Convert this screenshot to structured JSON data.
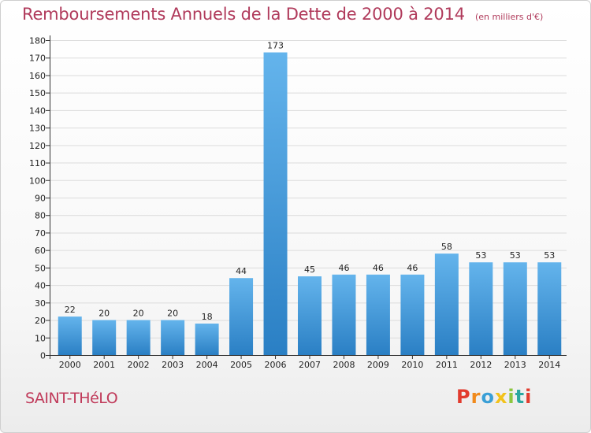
{
  "header": {
    "title": "Remboursements Annuels de la Dette de 2000 à 2014",
    "subtitle": "(en milliers d'€)"
  },
  "footer": {
    "commune": "SAINT-THéLO",
    "logo_text": "Proxiti",
    "logo_colors": [
      "#e23b2e",
      "#f08a1c",
      "#3a9fd6",
      "#f2c21b",
      "#8cc63f",
      "#2aa7a0",
      "#e23b2e"
    ]
  },
  "colors": {
    "bar_light": "#64b4ec",
    "bar_dark": "#2a7fc4",
    "axis": "#333333",
    "grid": "#dcdcdc",
    "title": "#b03a5b"
  },
  "chart_data": {
    "type": "bar",
    "title": "Remboursements Annuels de la Dette de 2000 à 2014",
    "subtitle": "(en milliers d'€)",
    "categories": [
      "2000",
      "2001",
      "2002",
      "2003",
      "2004",
      "2005",
      "2006",
      "2007",
      "2008",
      "2009",
      "2010",
      "2011",
      "2012",
      "2013",
      "2014"
    ],
    "values": [
      22,
      20,
      20,
      20,
      18,
      44,
      173,
      45,
      46,
      46,
      46,
      58,
      53,
      53,
      53
    ],
    "ylim": [
      0,
      180
    ],
    "yticks": [
      0,
      10,
      20,
      30,
      40,
      50,
      60,
      70,
      80,
      90,
      100,
      110,
      120,
      130,
      140,
      150,
      160,
      170,
      180
    ],
    "data_labels": true,
    "grid": true,
    "legend": "none"
  }
}
